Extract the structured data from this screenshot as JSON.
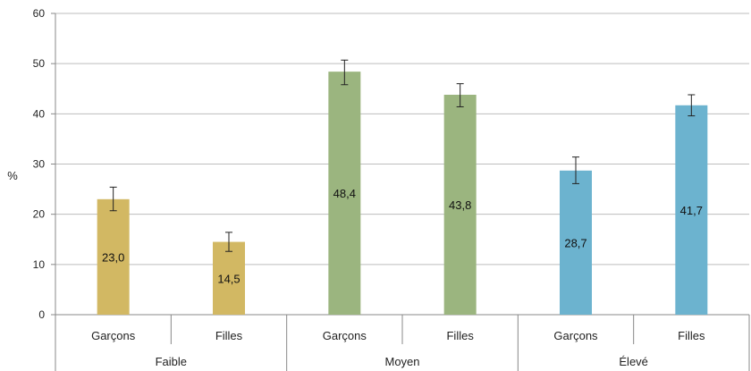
{
  "chart_data": {
    "type": "bar",
    "ylabel": "%",
    "ylim": [
      0,
      60
    ],
    "yticks": [
      0,
      10,
      20,
      30,
      40,
      50,
      60
    ],
    "grid": true,
    "groups": [
      {
        "name": "Faible",
        "color": "#D2B863",
        "bars": [
          {
            "label": "Garçons",
            "value": 23.0,
            "value_label": "23,0",
            "err_low": 20.7,
            "err_high": 25.4
          },
          {
            "label": "Filles",
            "value": 14.5,
            "value_label": "14,5",
            "err_low": 12.6,
            "err_high": 16.4
          }
        ]
      },
      {
        "name": "Moyen",
        "color": "#9BB57F",
        "bars": [
          {
            "label": "Garçons",
            "value": 48.4,
            "value_label": "48,4",
            "err_low": 45.8,
            "err_high": 50.7
          },
          {
            "label": "Filles",
            "value": 43.8,
            "value_label": "43,8",
            "err_low": 41.4,
            "err_high": 46.0
          }
        ]
      },
      {
        "name": "Élevé",
        "color": "#6CB3CF",
        "bars": [
          {
            "label": "Garçons",
            "value": 28.7,
            "value_label": "28,7",
            "err_low": 26.1,
            "err_high": 31.4
          },
          {
            "label": "Filles",
            "value": 41.7,
            "value_label": "41,7",
            "err_low": 39.6,
            "err_high": 43.8
          }
        ]
      }
    ]
  }
}
